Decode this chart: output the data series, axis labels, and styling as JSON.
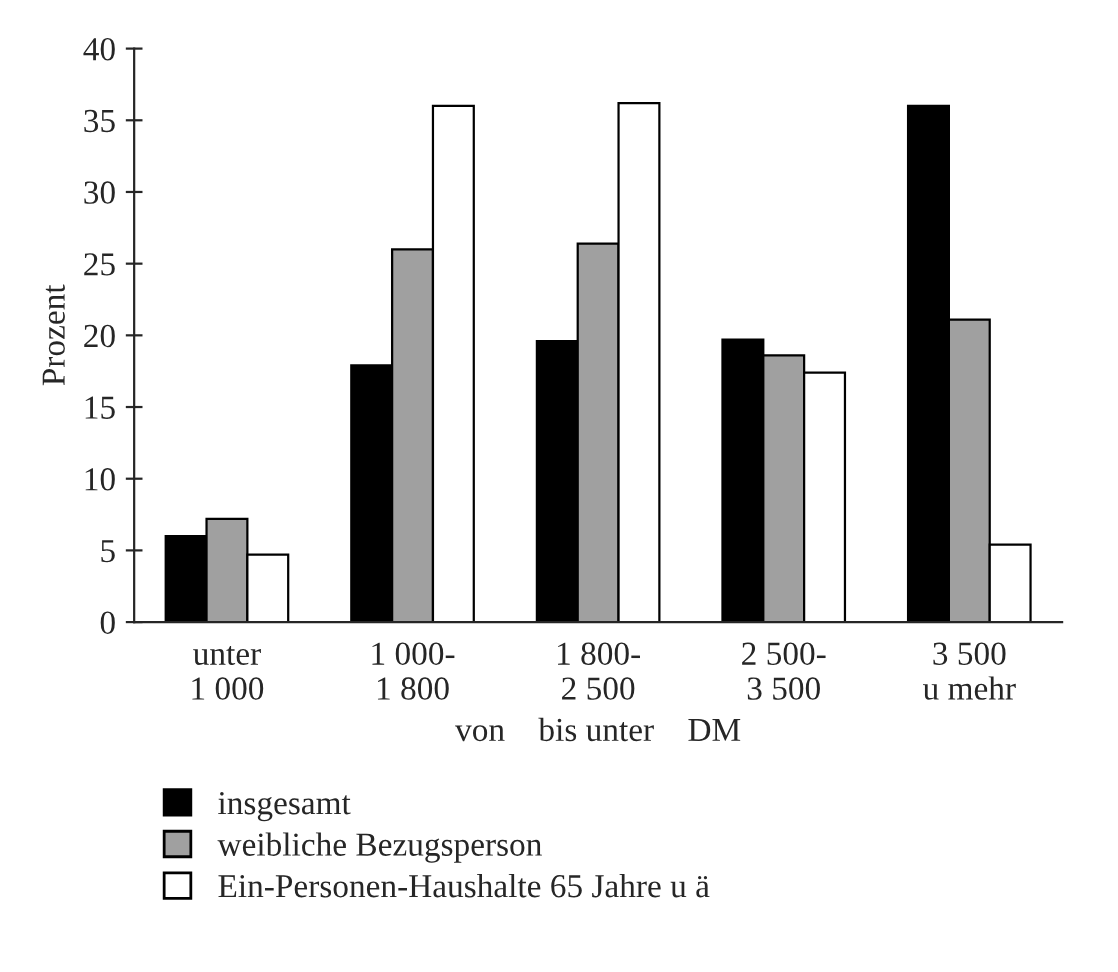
{
  "chart_data": {
    "type": "bar",
    "ylabel": "Prozent",
    "xlabel": "von    bis unter    DM",
    "categories": [
      "unter\n1 000",
      "1 000-\n1 800",
      "1 800-\n2 500",
      "2 500-\n3 500",
      "3 500\nu mehr"
    ],
    "series": [
      {
        "name": "insgesamt",
        "color": "#000000",
        "values": [
          6.0,
          17.9,
          19.6,
          19.7,
          36.0
        ]
      },
      {
        "name": "weibliche Bezugsperson",
        "color": "#a0a0a0",
        "values": [
          7.2,
          26.0,
          26.4,
          18.6,
          21.1
        ]
      },
      {
        "name": "Ein-Personen-Haushalte 65 Jahre u ä",
        "color": "#ffffff",
        "values": [
          4.7,
          36.0,
          36.2,
          17.4,
          5.4
        ]
      }
    ],
    "ylim": [
      0,
      40
    ],
    "yticks": [
      0,
      5,
      10,
      15,
      20,
      25,
      30,
      35,
      40
    ],
    "grid": false,
    "legend": "bottom left"
  }
}
